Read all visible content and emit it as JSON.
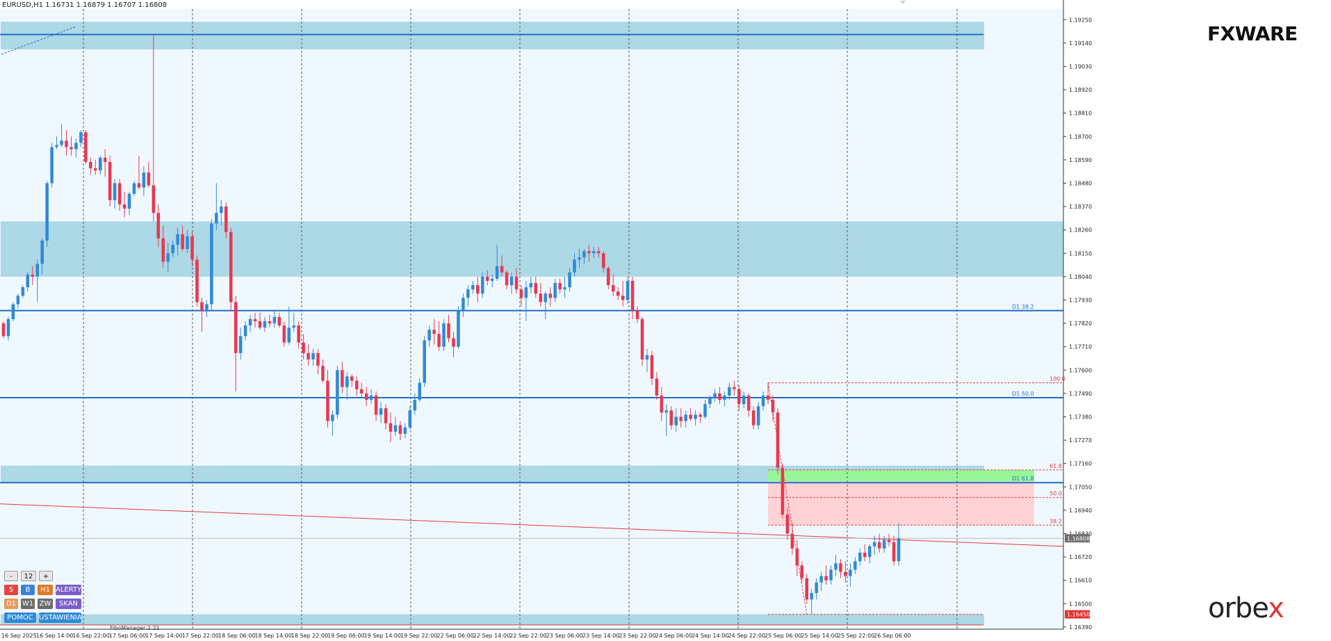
{
  "header": {
    "title": "EURUSD,H1  1.16731 1.16879 1.16707 1.16808"
  },
  "brand": {
    "top_logo": "FXWARE",
    "bottom_logo_main": "orbe",
    "bottom_logo_accent": "x"
  },
  "colors": {
    "bull": "#2f8ad6",
    "bear": "#e8384f",
    "zone": "#add8e6",
    "plot_bg": "#f0f8ff",
    "level_line": "#1e6fc8",
    "fib": "#e23a3a",
    "trend": "#e23a3a",
    "buy_zone": "#98f598",
    "sell_zone": "#ffd3d6",
    "price_label_bg": "#6f6f6f",
    "low_label_bg": "#e23535"
  },
  "panel": {
    "minus": "-",
    "value": "12",
    "plus": "+",
    "s": "S",
    "b": "B",
    "h1": "H1",
    "alert": "ALERTY",
    "d1": "D1",
    "w1": "W1",
    "zw": "ZW",
    "skan": "SKAN",
    "help": "POMOC",
    "settings": "USTAWIENIA"
  },
  "fibo_manager": "FiboManager 2.21",
  "chart_data": {
    "type": "candlestick",
    "symbol": "EURUSD",
    "timeframe": "H1",
    "ohlc_header": {
      "open": 1.16731,
      "high": 1.16879,
      "low": 1.16707,
      "close": 1.16808
    },
    "current_price": "1.16808",
    "low_price_label": "1.16450",
    "ylim": [
      1.1638,
      1.193
    ],
    "y_ticks": [
      "1.19250",
      "1.19140",
      "1.19030",
      "1.18920",
      "1.18810",
      "1.18700",
      "1.18590",
      "1.18480",
      "1.18370",
      "1.18260",
      "1.18150",
      "1.18040",
      "1.17930",
      "1.17820",
      "1.17710",
      "1.17600",
      "1.17490",
      "1.17380",
      "1.17270",
      "1.17160",
      "1.17050",
      "1.16940",
      "1.16830",
      "1.16720",
      "1.16610",
      "1.16500",
      "1.16390"
    ],
    "x_ticks": [
      "16 Sep 2025",
      "16 Sep 14:00",
      "16 Sep 22:00",
      "17 Sep 06:00",
      "17 Sep 14:00",
      "17 Sep 22:00",
      "18 Sep 06:00",
      "18 Sep 14:00",
      "18 Sep 22:00",
      "19 Sep 06:00",
      "19 Sep 14:00",
      "19 Sep 22:00",
      "22 Sep 06:00",
      "22 Sep 14:00",
      "22 Sep 22:00",
      "23 Sep 06:00",
      "23 Sep 14:00",
      "23 Sep 22:00",
      "24 Sep 06:00",
      "24 Sep 14:00",
      "24 Sep 22:00",
      "25 Sep 06:00",
      "25 Sep 14:00",
      "25 Sep 22:00",
      "26 Sep 06:00"
    ],
    "zones": [
      {
        "from": 1.1911,
        "to": 1.1924
      },
      {
        "from": 1.1804,
        "to": 1.183
      },
      {
        "from": 1.1707,
        "to": 1.1715
      },
      {
        "from": 1.164,
        "to": 1.1645
      }
    ],
    "horizontal_levels": [
      {
        "price": 1.1918,
        "label": ""
      },
      {
        "price": 1.1788,
        "label": "D1 38.2"
      },
      {
        "price": 1.1747,
        "label": "D1 50.0"
      },
      {
        "price": 1.1707,
        "label": "D1 61.8"
      }
    ],
    "fibonacci": [
      {
        "level": "100.0",
        "price": 1.1754
      },
      {
        "level": "61.8",
        "price": 1.1713
      },
      {
        "level": "50.0",
        "price": 1.17
      },
      {
        "level": "38.2",
        "price": 1.1687
      }
    ],
    "trendline": {
      "from": 1.1697,
      "to": 1.1677
    },
    "candles": [
      [
        1.1782,
        1.1783,
        1.1775,
        1.1776
      ],
      [
        1.1776,
        1.1785,
        1.1774,
        1.1784
      ],
      [
        1.1784,
        1.1792,
        1.1783,
        1.1791
      ],
      [
        1.1791,
        1.1796,
        1.1789,
        1.1795
      ],
      [
        1.1795,
        1.18,
        1.1794,
        1.1799
      ],
      [
        1.1799,
        1.1806,
        1.1797,
        1.1805
      ],
      [
        1.1805,
        1.1809,
        1.18,
        1.1804
      ],
      [
        1.1804,
        1.1812,
        1.1792,
        1.181
      ],
      [
        1.181,
        1.1822,
        1.1805,
        1.1821
      ],
      [
        1.1821,
        1.1849,
        1.1818,
        1.1848
      ],
      [
        1.1848,
        1.1867,
        1.1846,
        1.1865
      ],
      [
        1.1865,
        1.187,
        1.1864,
        1.1866
      ],
      [
        1.1866,
        1.1876,
        1.1865,
        1.1868
      ],
      [
        1.1868,
        1.1873,
        1.1861,
        1.1865
      ],
      [
        1.1865,
        1.187,
        1.1861,
        1.1864
      ],
      [
        1.1864,
        1.1869,
        1.186,
        1.1867
      ],
      [
        1.1867,
        1.1873,
        1.1865,
        1.1872
      ],
      [
        1.1872,
        1.1873,
        1.1857,
        1.1858
      ],
      [
        1.1858,
        1.186,
        1.1852,
        1.1855
      ],
      [
        1.1855,
        1.1859,
        1.1852,
        1.1854
      ],
      [
        1.1854,
        1.1861,
        1.1852,
        1.186
      ],
      [
        1.186,
        1.1864,
        1.1851,
        1.1858
      ],
      [
        1.1858,
        1.1861,
        1.1837,
        1.184
      ],
      [
        1.184,
        1.185,
        1.1836,
        1.1848
      ],
      [
        1.1848,
        1.185,
        1.1835,
        1.1838
      ],
      [
        1.1838,
        1.1844,
        1.1832,
        1.1836
      ],
      [
        1.1836,
        1.1844,
        1.1833,
        1.1843
      ],
      [
        1.1843,
        1.1849,
        1.1842,
        1.1848
      ],
      [
        1.1848,
        1.1861,
        1.1845,
        1.1846
      ],
      [
        1.1846,
        1.1856,
        1.1842,
        1.1853
      ],
      [
        1.1853,
        1.1858,
        1.1846,
        1.1847
      ],
      [
        1.1847,
        1.1918,
        1.183,
        1.1834
      ],
      [
        1.1834,
        1.1838,
        1.1818,
        1.1822
      ],
      [
        1.1822,
        1.1828,
        1.1808,
        1.1811
      ],
      [
        1.1811,
        1.182,
        1.1806,
        1.1815
      ],
      [
        1.1815,
        1.1821,
        1.1813,
        1.1819
      ],
      [
        1.1819,
        1.1827,
        1.1814,
        1.1824
      ],
      [
        1.1824,
        1.1828,
        1.1816,
        1.1817
      ],
      [
        1.1817,
        1.1826,
        1.1815,
        1.1823
      ],
      [
        1.1823,
        1.1825,
        1.1809,
        1.1812
      ],
      [
        1.1812,
        1.1814,
        1.179,
        1.1792
      ],
      [
        1.1792,
        1.1794,
        1.1778,
        1.1788
      ],
      [
        1.1788,
        1.1793,
        1.1785,
        1.1791
      ],
      [
        1.1791,
        1.1831,
        1.1788,
        1.1829
      ],
      [
        1.1829,
        1.1848,
        1.1826,
        1.1834
      ],
      [
        1.1834,
        1.184,
        1.1828,
        1.1837
      ],
      [
        1.1837,
        1.1839,
        1.1822,
        1.1825
      ],
      [
        1.1825,
        1.1827,
        1.1788,
        1.1792
      ],
      [
        1.1792,
        1.1795,
        1.175,
        1.1768
      ],
      [
        1.1768,
        1.178,
        1.1765,
        1.1776
      ],
      [
        1.1776,
        1.1783,
        1.1774,
        1.1781
      ],
      [
        1.1781,
        1.1786,
        1.1778,
        1.1784
      ],
      [
        1.1784,
        1.1787,
        1.178,
        1.1783
      ],
      [
        1.1783,
        1.1787,
        1.1779,
        1.178
      ],
      [
        1.178,
        1.1785,
        1.1778,
        1.1783
      ],
      [
        1.1783,
        1.1786,
        1.178,
        1.1782
      ],
      [
        1.1782,
        1.1788,
        1.178,
        1.1785
      ],
      [
        1.1785,
        1.1787,
        1.178,
        1.1781
      ],
      [
        1.1781,
        1.1783,
        1.1771,
        1.1773
      ],
      [
        1.1773,
        1.179,
        1.1772,
        1.178
      ],
      [
        1.178,
        1.1787,
        1.1778,
        1.1781
      ],
      [
        1.1781,
        1.1783,
        1.177,
        1.1773
      ],
      [
        1.1773,
        1.1777,
        1.1765,
        1.1768
      ],
      [
        1.1768,
        1.1772,
        1.1762,
        1.1765
      ],
      [
        1.1765,
        1.177,
        1.1762,
        1.1768
      ],
      [
        1.1768,
        1.177,
        1.1758,
        1.1762
      ],
      [
        1.1762,
        1.1765,
        1.1754,
        1.1755
      ],
      [
        1.1755,
        1.176,
        1.1733,
        1.1736
      ],
      [
        1.1736,
        1.1741,
        1.1729,
        1.1739
      ],
      [
        1.1739,
        1.1762,
        1.1737,
        1.176
      ],
      [
        1.176,
        1.1764,
        1.1749,
        1.1752
      ],
      [
        1.1752,
        1.1759,
        1.1746,
        1.1757
      ],
      [
        1.1757,
        1.1758,
        1.1752,
        1.1755
      ],
      [
        1.1755,
        1.1757,
        1.1748,
        1.1751
      ],
      [
        1.1751,
        1.1754,
        1.1747,
        1.1749
      ],
      [
        1.1749,
        1.1752,
        1.1743,
        1.1746
      ],
      [
        1.1746,
        1.1751,
        1.1744,
        1.1748
      ],
      [
        1.1748,
        1.175,
        1.1736,
        1.1739
      ],
      [
        1.1739,
        1.1745,
        1.1735,
        1.1742
      ],
      [
        1.1742,
        1.1744,
        1.1732,
        1.1735
      ],
      [
        1.1735,
        1.174,
        1.1726,
        1.1731
      ],
      [
        1.1731,
        1.1738,
        1.1729,
        1.1734
      ],
      [
        1.1734,
        1.1736,
        1.1727,
        1.173
      ],
      [
        1.173,
        1.1735,
        1.1728,
        1.1733
      ],
      [
        1.1733,
        1.1743,
        1.1732,
        1.1741
      ],
      [
        1.1741,
        1.1749,
        1.1739,
        1.1746
      ],
      [
        1.1746,
        1.1756,
        1.1745,
        1.1754
      ],
      [
        1.1754,
        1.1776,
        1.1752,
        1.1774
      ],
      [
        1.1774,
        1.1781,
        1.1771,
        1.1779
      ],
      [
        1.1779,
        1.1784,
        1.1772,
        1.1777
      ],
      [
        1.1777,
        1.1783,
        1.1769,
        1.1771
      ],
      [
        1.1771,
        1.1784,
        1.1769,
        1.1782
      ],
      [
        1.1782,
        1.1786,
        1.1773,
        1.1775
      ],
      [
        1.1775,
        1.1778,
        1.1766,
        1.1771
      ],
      [
        1.1771,
        1.179,
        1.177,
        1.1788
      ],
      [
        1.1788,
        1.1796,
        1.1785,
        1.1794
      ],
      [
        1.1794,
        1.18,
        1.179,
        1.1798
      ],
      [
        1.1798,
        1.1802,
        1.1796,
        1.18
      ],
      [
        1.18,
        1.1804,
        1.1792,
        1.1796
      ],
      [
        1.1796,
        1.1806,
        1.1794,
        1.1804
      ],
      [
        1.1804,
        1.1807,
        1.18,
        1.1802
      ],
      [
        1.1802,
        1.1805,
        1.1799,
        1.1803
      ],
      [
        1.1803,
        1.1819,
        1.1802,
        1.1809
      ],
      [
        1.1809,
        1.1814,
        1.1804,
        1.1806
      ],
      [
        1.1806,
        1.1807,
        1.1798,
        1.18
      ],
      [
        1.18,
        1.1806,
        1.1796,
        1.1804
      ],
      [
        1.1804,
        1.1808,
        1.1796,
        1.1798
      ],
      [
        1.1798,
        1.18,
        1.179,
        1.1794
      ],
      [
        1.1794,
        1.1802,
        1.1783,
        1.1799
      ],
      [
        1.1799,
        1.1804,
        1.1796,
        1.1801
      ],
      [
        1.1801,
        1.1804,
        1.1794,
        1.1796
      ],
      [
        1.1796,
        1.1801,
        1.179,
        1.1792
      ],
      [
        1.1792,
        1.1797,
        1.1784,
        1.1796
      ],
      [
        1.1796,
        1.1799,
        1.179,
        1.1794
      ],
      [
        1.1794,
        1.1803,
        1.1792,
        1.1801
      ],
      [
        1.1801,
        1.1803,
        1.1796,
        1.1798
      ],
      [
        1.1798,
        1.1804,
        1.1794,
        1.1799
      ],
      [
        1.1799,
        1.1808,
        1.1797,
        1.1806
      ],
      [
        1.1806,
        1.1815,
        1.1804,
        1.1812
      ],
      [
        1.1812,
        1.1817,
        1.1808,
        1.1813
      ],
      [
        1.1813,
        1.1817,
        1.181,
        1.1816
      ],
      [
        1.1816,
        1.1819,
        1.1811,
        1.1815
      ],
      [
        1.1815,
        1.1818,
        1.1813,
        1.1816
      ],
      [
        1.1816,
        1.1818,
        1.1813,
        1.1815
      ],
      [
        1.1815,
        1.1816,
        1.1806,
        1.1808
      ],
      [
        1.1808,
        1.1809,
        1.1798,
        1.18
      ],
      [
        1.18,
        1.1805,
        1.1795,
        1.1797
      ],
      [
        1.1797,
        1.1799,
        1.1793,
        1.1795
      ],
      [
        1.1795,
        1.1802,
        1.179,
        1.1793
      ],
      [
        1.1793,
        1.1804,
        1.1791,
        1.1802
      ],
      [
        1.1802,
        1.1804,
        1.1784,
        1.1788
      ],
      [
        1.1788,
        1.179,
        1.1782,
        1.1784
      ],
      [
        1.1784,
        1.1785,
        1.1762,
        1.1765
      ],
      [
        1.1765,
        1.177,
        1.1759,
        1.1767
      ],
      [
        1.1767,
        1.1769,
        1.1753,
        1.1756
      ],
      [
        1.1756,
        1.1759,
        1.1746,
        1.1748
      ],
      [
        1.1748,
        1.1752,
        1.1736,
        1.174
      ],
      [
        1.174,
        1.1744,
        1.1729,
        1.1741
      ],
      [
        1.1741,
        1.1743,
        1.1732,
        1.1734
      ],
      [
        1.1734,
        1.1742,
        1.1731,
        1.1738
      ],
      [
        1.1738,
        1.1742,
        1.1733,
        1.1736
      ],
      [
        1.1736,
        1.1741,
        1.1733,
        1.1739
      ],
      [
        1.1739,
        1.1742,
        1.1736,
        1.1737
      ],
      [
        1.1737,
        1.1741,
        1.1734,
        1.1739
      ],
      [
        1.1739,
        1.174,
        1.1735,
        1.1738
      ],
      [
        1.1738,
        1.1746,
        1.1737,
        1.1744
      ],
      [
        1.1744,
        1.1748,
        1.1742,
        1.1747
      ],
      [
        1.1747,
        1.1751,
        1.1745,
        1.1749
      ],
      [
        1.1749,
        1.1752,
        1.1744,
        1.1746
      ],
      [
        1.1746,
        1.175,
        1.1743,
        1.1748
      ],
      [
        1.1748,
        1.1754,
        1.1746,
        1.1752
      ],
      [
        1.1752,
        1.1755,
        1.1748,
        1.1751
      ],
      [
        1.1751,
        1.1753,
        1.1741,
        1.1744
      ],
      [
        1.1744,
        1.175,
        1.1742,
        1.1748
      ],
      [
        1.1748,
        1.1749,
        1.1738,
        1.1741
      ],
      [
        1.1741,
        1.1743,
        1.1732,
        1.1734
      ],
      [
        1.1734,
        1.1745,
        1.1732,
        1.1743
      ],
      [
        1.1743,
        1.175,
        1.1741,
        1.1748
      ],
      [
        1.1748,
        1.1754,
        1.1744,
        1.1746
      ],
      [
        1.1746,
        1.1748,
        1.1736,
        1.174
      ],
      [
        1.174,
        1.1742,
        1.1711,
        1.1714
      ],
      [
        1.1714,
        1.1716,
        1.169,
        1.1692
      ],
      [
        1.1692,
        1.1695,
        1.168,
        1.1683
      ],
      [
        1.1683,
        1.1688,
        1.1673,
        1.1676
      ],
      [
        1.1676,
        1.168,
        1.1663,
        1.1668
      ],
      [
        1.1668,
        1.167,
        1.166,
        1.1662
      ],
      [
        1.1662,
        1.1664,
        1.165,
        1.1652
      ],
      [
        1.1652,
        1.1657,
        1.1645,
        1.1655
      ],
      [
        1.1655,
        1.1662,
        1.1652,
        1.166
      ],
      [
        1.166,
        1.1665,
        1.1656,
        1.1663
      ],
      [
        1.1663,
        1.1668,
        1.1659,
        1.1661
      ],
      [
        1.1661,
        1.1668,
        1.1659,
        1.1666
      ],
      [
        1.1666,
        1.1673,
        1.1663,
        1.1669
      ],
      [
        1.1669,
        1.1671,
        1.1662,
        1.1665
      ],
      [
        1.1665,
        1.167,
        1.166,
        1.1663
      ],
      [
        1.1663,
        1.1669,
        1.1658,
        1.1666
      ],
      [
        1.1666,
        1.1672,
        1.1664,
        1.167
      ],
      [
        1.167,
        1.1676,
        1.1668,
        1.1674
      ],
      [
        1.1674,
        1.1678,
        1.167,
        1.1672
      ],
      [
        1.1672,
        1.1678,
        1.1669,
        1.1677
      ],
      [
        1.1677,
        1.1682,
        1.1673,
        1.1679
      ],
      [
        1.1679,
        1.1683,
        1.1674,
        1.1676
      ],
      [
        1.1676,
        1.1682,
        1.1674,
        1.168
      ],
      [
        1.168,
        1.1683,
        1.1677,
        1.1679
      ],
      [
        1.1679,
        1.1682,
        1.1668,
        1.167
      ],
      [
        1.167,
        1.1688,
        1.1668,
        1.16808
      ]
    ]
  }
}
